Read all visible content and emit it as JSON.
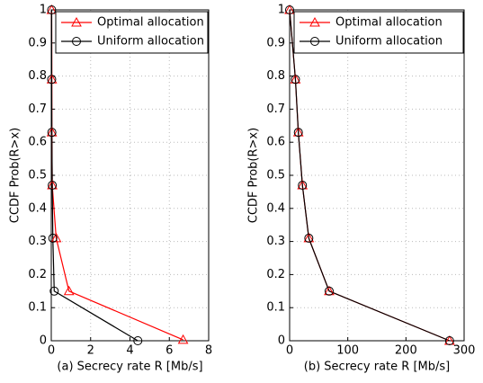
{
  "chart_data": [
    {
      "type": "line",
      "xlabel": "(a) Secrecy rate R [Mb/s]",
      "ylabel": "CCDF Prob(R>x)",
      "xlim": [
        0,
        8
      ],
      "xticks": [
        0,
        2,
        4,
        6,
        8
      ],
      "ylim": [
        0,
        1
      ],
      "yticks": [
        0,
        0.1,
        0.2,
        0.3,
        0.4,
        0.5,
        0.6,
        0.7,
        0.8,
        0.9,
        1
      ],
      "grid": true,
      "legend": "upper right",
      "series": [
        {
          "name": "Optimal allocation",
          "color": "#ff0000",
          "marker": "triangle",
          "x": [
            0.02,
            0.03,
            0.03,
            0.05,
            0.25,
            0.9,
            6.7
          ],
          "values": [
            1,
            0.79,
            0.63,
            0.47,
            0.31,
            0.15,
            0.003
          ]
        },
        {
          "name": "Uniform allocation",
          "color": "#000000",
          "marker": "circle",
          "x": [
            0.02,
            0.02,
            0.03,
            0.05,
            0.08,
            0.15,
            4.4
          ],
          "values": [
            1,
            0.79,
            0.63,
            0.47,
            0.31,
            0.15,
            0
          ]
        }
      ]
    },
    {
      "type": "line",
      "xlabel": "(b) Secrecy rate R [Mb/s]",
      "ylabel": "CCDF Prob(R>x)",
      "xlim": [
        0,
        300
      ],
      "xticks": [
        0,
        100,
        200,
        300
      ],
      "ylim": [
        0,
        1
      ],
      "yticks": [
        0,
        0.1,
        0.2,
        0.3,
        0.4,
        0.5,
        0.6,
        0.7,
        0.8,
        0.9,
        1
      ],
      "grid": true,
      "legend": "upper right",
      "series": [
        {
          "name": "Optimal allocation",
          "color": "#ff0000",
          "marker": "triangle",
          "x": [
            0,
            10,
            15,
            22,
            33,
            68,
            275
          ],
          "values": [
            1,
            0.79,
            0.63,
            0.47,
            0.31,
            0.15,
            0
          ]
        },
        {
          "name": "Uniform allocation",
          "color": "#000000",
          "marker": "circle",
          "x": [
            0,
            10,
            15,
            22,
            33,
            68,
            275
          ],
          "values": [
            1,
            0.79,
            0.63,
            0.47,
            0.31,
            0.15,
            0
          ]
        }
      ]
    }
  ]
}
